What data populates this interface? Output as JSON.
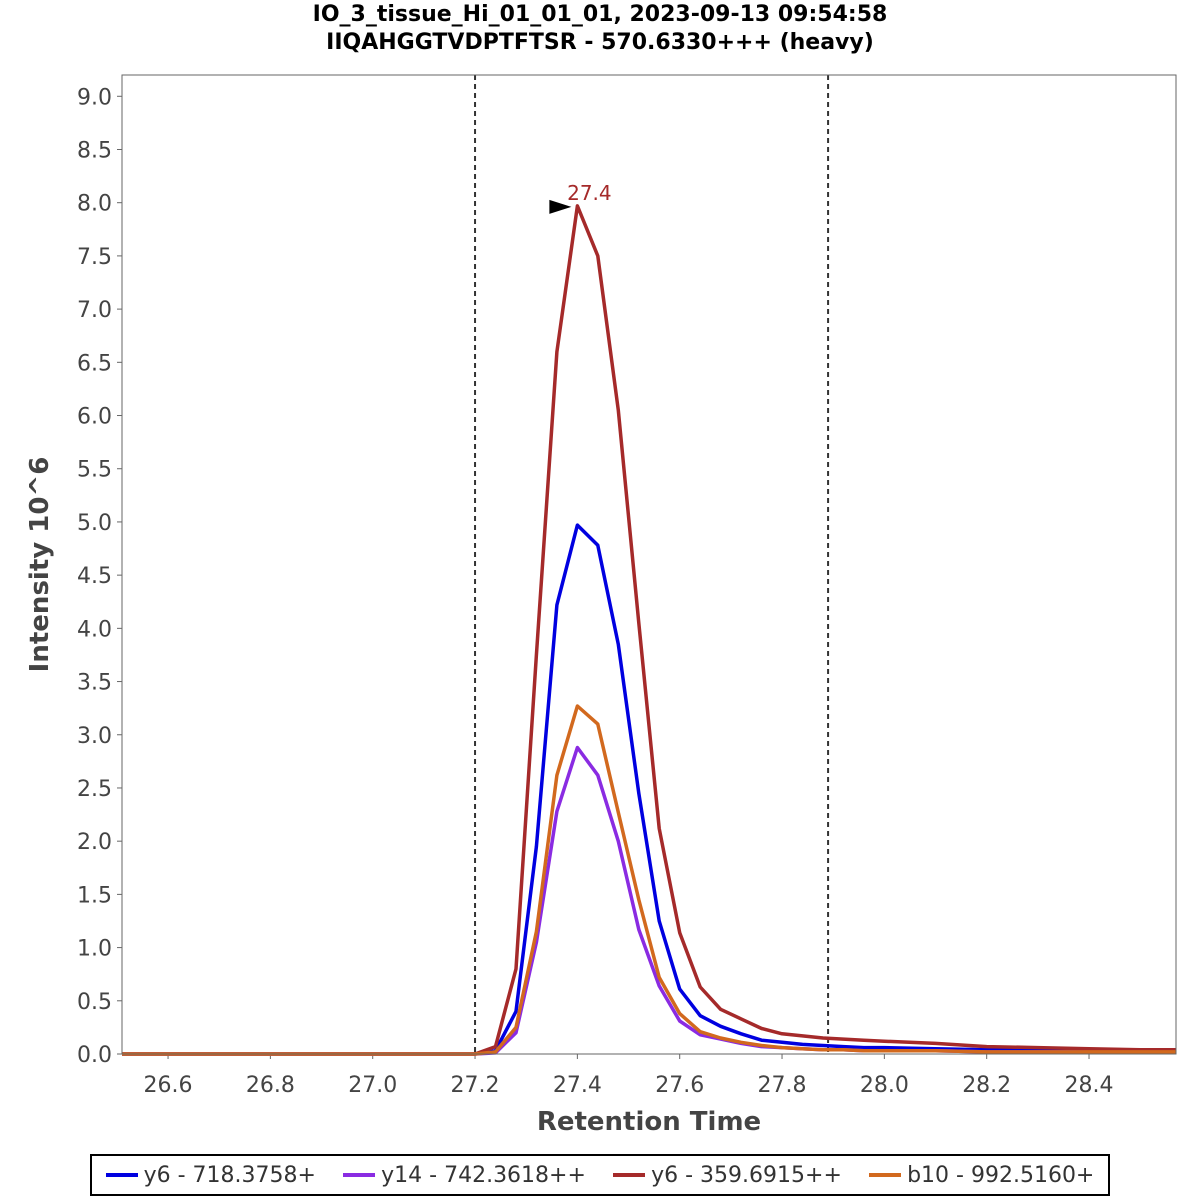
{
  "header": {
    "title": "IO_3_tissue_Hi_01_01_01, 2023-09-13 09:54:58",
    "subtitle": "IIQAHGGTVDPTFTSR - 570.6330+++ (heavy)"
  },
  "chart_data": {
    "type": "line",
    "title": "IO_3_tissue_Hi_01_01_01, 2023-09-13 09:54:58",
    "subtitle": "IIQAHGGTVDPTFTSR - 570.6330+++ (heavy)",
    "xlabel": "Retention Time",
    "ylabel": "Intensity 10^6",
    "xlim": [
      26.51,
      28.57
    ],
    "ylim": [
      0,
      9.2
    ],
    "x_ticks": [
      26.6,
      26.8,
      27.0,
      27.2,
      27.4,
      27.6,
      27.8,
      28.0,
      28.2,
      28.4
    ],
    "x_tick_labels": [
      "26.6",
      "26.8",
      "27.0",
      "27.2",
      "27.4",
      "27.6",
      "27.8",
      "28.0",
      "28.2",
      "28.4"
    ],
    "y_ticks": [
      0,
      0.5,
      1.0,
      1.5,
      2.0,
      2.5,
      3.0,
      3.5,
      4.0,
      4.5,
      5.0,
      5.5,
      6.0,
      6.5,
      7.0,
      7.5,
      8.0,
      8.5,
      9.0
    ],
    "y_tick_labels": [
      "0.0",
      "0.5",
      "1.0",
      "1.5",
      "2.0",
      "2.5",
      "3.0",
      "3.5",
      "4.0",
      "4.5",
      "5.0",
      "5.5",
      "6.0",
      "6.5",
      "7.0",
      "7.5",
      "8.0",
      "8.5",
      "9.0"
    ],
    "grid": false,
    "legend_position": "bottom",
    "boundaries": [
      27.2,
      27.89
    ],
    "peak_annotation": {
      "x": 27.4,
      "y": 7.97,
      "label": "27.4",
      "color": "#a52a2a"
    },
    "x": [
      26.51,
      27.2,
      27.24,
      27.28,
      27.32,
      27.36,
      27.4,
      27.44,
      27.48,
      27.52,
      27.56,
      27.6,
      27.64,
      27.68,
      27.72,
      27.76,
      27.8,
      27.84,
      27.88,
      27.92,
      27.96,
      28.0,
      28.1,
      28.2,
      28.3,
      28.4,
      28.5,
      28.57
    ],
    "series": [
      {
        "name": "y6 - 718.3758+",
        "color": "#0000e0",
        "values": [
          0,
          0,
          0.03,
          0.4,
          1.95,
          4.22,
          4.97,
          4.78,
          3.85,
          2.45,
          1.25,
          0.61,
          0.36,
          0.26,
          0.19,
          0.13,
          0.11,
          0.09,
          0.08,
          0.07,
          0.06,
          0.06,
          0.05,
          0.04,
          0.03,
          0.03,
          0.02,
          0.02
        ]
      },
      {
        "name": "y14 - 742.3618++",
        "color": "#8a2be2",
        "values": [
          0,
          0,
          0.01,
          0.2,
          1.05,
          2.28,
          2.88,
          2.62,
          2.0,
          1.17,
          0.64,
          0.31,
          0.18,
          0.14,
          0.1,
          0.07,
          0.06,
          0.05,
          0.04,
          0.04,
          0.03,
          0.03,
          0.03,
          0.02,
          0.02,
          0.02,
          0.02,
          0.02
        ]
      },
      {
        "name": "y6 - 359.6915++",
        "color": "#a52a2a",
        "values": [
          0,
          0,
          0.07,
          0.8,
          3.75,
          6.6,
          7.97,
          7.5,
          6.05,
          4.05,
          2.12,
          1.14,
          0.63,
          0.42,
          0.33,
          0.24,
          0.19,
          0.17,
          0.15,
          0.14,
          0.13,
          0.12,
          0.1,
          0.07,
          0.06,
          0.05,
          0.04,
          0.04
        ]
      },
      {
        "name": "b10 - 992.5160+",
        "color": "#d2691e",
        "values": [
          0,
          0,
          0.02,
          0.25,
          1.15,
          2.62,
          3.27,
          3.1,
          2.27,
          1.45,
          0.72,
          0.38,
          0.21,
          0.15,
          0.11,
          0.08,
          0.06,
          0.05,
          0.04,
          0.04,
          0.03,
          0.03,
          0.03,
          0.02,
          0.02,
          0.02,
          0.02,
          0.02
        ]
      }
    ]
  }
}
